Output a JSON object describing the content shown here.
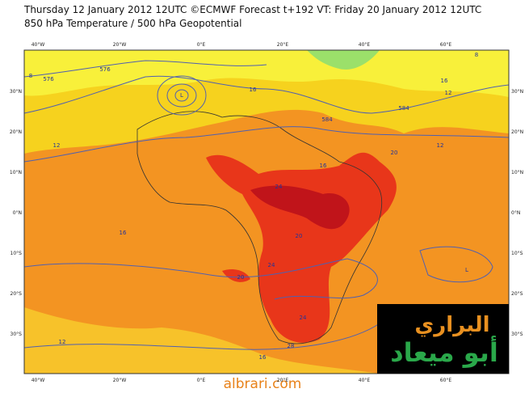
{
  "header": {
    "line1": "Thursday 12 January 2012 12UTC ©ECMWF Forecast t+192 VT: Friday 20 January 2012 12UTC",
    "line2": "850 hPa Temperature / 500 hPa Geopotential"
  },
  "map": {
    "lon_labels": [
      "40°W",
      "20°W",
      "0°E",
      "20°E",
      "40°E",
      "60°E"
    ],
    "lat_labels": [
      "30°N",
      "20°N",
      "10°N",
      "0°N",
      "10°S",
      "20°S",
      "30°S"
    ],
    "contour_labels": [
      "8",
      "576",
      "12",
      "L",
      "16",
      "576",
      "584",
      "12",
      "20",
      "16",
      "24",
      "20",
      "16",
      "24",
      "20",
      "24",
      "L",
      "12",
      "16",
      "28",
      "12",
      "16",
      "584",
      "8"
    ]
  },
  "watermark": {
    "line1": "البراري",
    "line2": "أبو ميعاد"
  },
  "footer": "albrari.com"
}
